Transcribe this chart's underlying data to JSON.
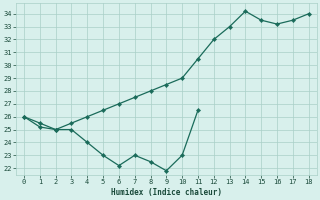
{
  "xlabel": "Humidex (Indice chaleur)",
  "x_upper": [
    0,
    1,
    2,
    3,
    4,
    5,
    6,
    7,
    8,
    9,
    10,
    11,
    12,
    13,
    14,
    15,
    16,
    17,
    18
  ],
  "y_upper": [
    26,
    25.5,
    25,
    25.5,
    26,
    26.5,
    27,
    27.5,
    28,
    28.5,
    29,
    30.5,
    32,
    33,
    34.2,
    33.5,
    33.2,
    33.5,
    34
  ],
  "x_lower": [
    0,
    1,
    2,
    3,
    4,
    5,
    6,
    7,
    8,
    9,
    10,
    11
  ],
  "y_lower": [
    26,
    25.2,
    25,
    25,
    24,
    23,
    22.2,
    23,
    22.5,
    21.8,
    23,
    26.5
  ],
  "line_color": "#1a6b5a",
  "bg_color": "#d8f0ec",
  "grid_color": "#aacfc8",
  "tick_label_color": "#1a4a3a",
  "xlabel_color": "#1a4a3a",
  "ylim": [
    21.5,
    34.8
  ],
  "xlim": [
    -0.5,
    18.5
  ],
  "yticks": [
    22,
    23,
    24,
    25,
    26,
    27,
    28,
    29,
    30,
    31,
    32,
    33,
    34
  ],
  "xticks": [
    0,
    1,
    2,
    3,
    4,
    5,
    6,
    7,
    8,
    9,
    10,
    11,
    12,
    13,
    14,
    15,
    16,
    17,
    18
  ]
}
